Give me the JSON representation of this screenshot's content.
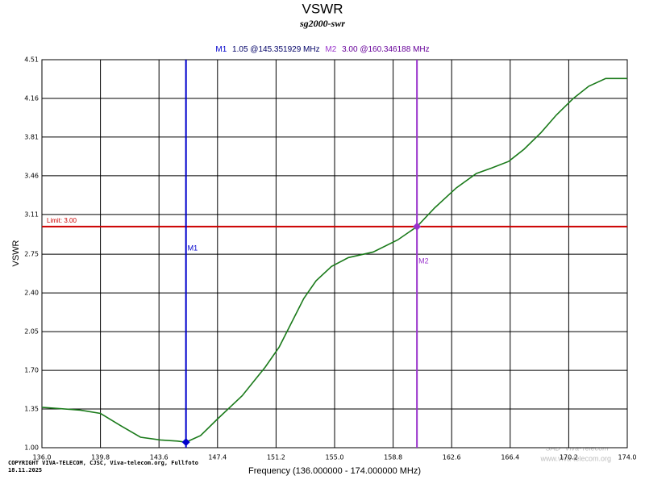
{
  "chart_data": {
    "type": "line",
    "title": "VSWR",
    "subtitle": "sg2000-swr",
    "ylabel": "VSWR",
    "xlabel": "Frequency (136.000000 - 174.000000 MHz)",
    "copyright": "COPYRIGHT VIVA-TELECOM, CJSC, Viva-telecom.org, Fullfoto",
    "date": "18.11.2025",
    "watermark": [
      "SAD \"Viva-Telecom\"",
      "www.viva-telecom.org"
    ],
    "xlim": [
      136,
      174
    ],
    "xticks": [
      {
        "value": 136,
        "label": "136.0"
      },
      139.8,
      143.6,
      147.4,
      151.2,
      {
        "value": 155,
        "label": "155.0"
      },
      158.8,
      162.6,
      166.4,
      170.2,
      {
        "value": 174,
        "label": "174.0"
      }
    ],
    "ylim": [
      1,
      4.51
    ],
    "yticks": [
      {
        "value": 1,
        "label": "1.00"
      },
      1.35,
      {
        "value": 1.7,
        "label": "1.70"
      },
      2.05,
      {
        "value": 2.4,
        "label": "2.40"
      },
      2.75,
      3.11,
      3.46,
      3.81,
      4.16,
      4.51
    ],
    "grid": true,
    "series": [
      {
        "name": "VSWR",
        "color": "#1a7a1a",
        "x": [
          136,
          138.5,
          139.8,
          141.1,
          142.4,
          143.7,
          144.8,
          145.35,
          146.3,
          147.4,
          149.0,
          150.5,
          151.4,
          152.2,
          153.0,
          153.8,
          154.8,
          155.9,
          157.5,
          159.1,
          160.35,
          161.5,
          162.9,
          164.2,
          165.2,
          166.3,
          167.3,
          168.4,
          169.4,
          170.5,
          171.5,
          172.6,
          174
        ],
        "values": [
          1.365,
          1.34,
          1.31,
          1.2,
          1.095,
          1.07,
          1.06,
          1.05,
          1.11,
          1.26,
          1.47,
          1.73,
          1.91,
          2.13,
          2.35,
          2.51,
          2.64,
          2.72,
          2.77,
          2.88,
          3.0,
          3.17,
          3.35,
          3.48,
          3.53,
          3.59,
          3.7,
          3.85,
          4.01,
          4.16,
          4.27,
          4.34,
          4.34
        ]
      }
    ],
    "limit": {
      "value": 3.0,
      "label": "Limit: 3.00",
      "color": "#cc0000"
    },
    "markers": [
      {
        "name": "M1",
        "x": 145.351929,
        "y": 1.05,
        "readout": "1.05 @145.351929 MHz",
        "color": "#0000cc"
      },
      {
        "name": "M2",
        "x": 160.346188,
        "y": 3.0,
        "readout": "3.00 @160.346188 MHz",
        "color": "#9933cc"
      }
    ]
  }
}
